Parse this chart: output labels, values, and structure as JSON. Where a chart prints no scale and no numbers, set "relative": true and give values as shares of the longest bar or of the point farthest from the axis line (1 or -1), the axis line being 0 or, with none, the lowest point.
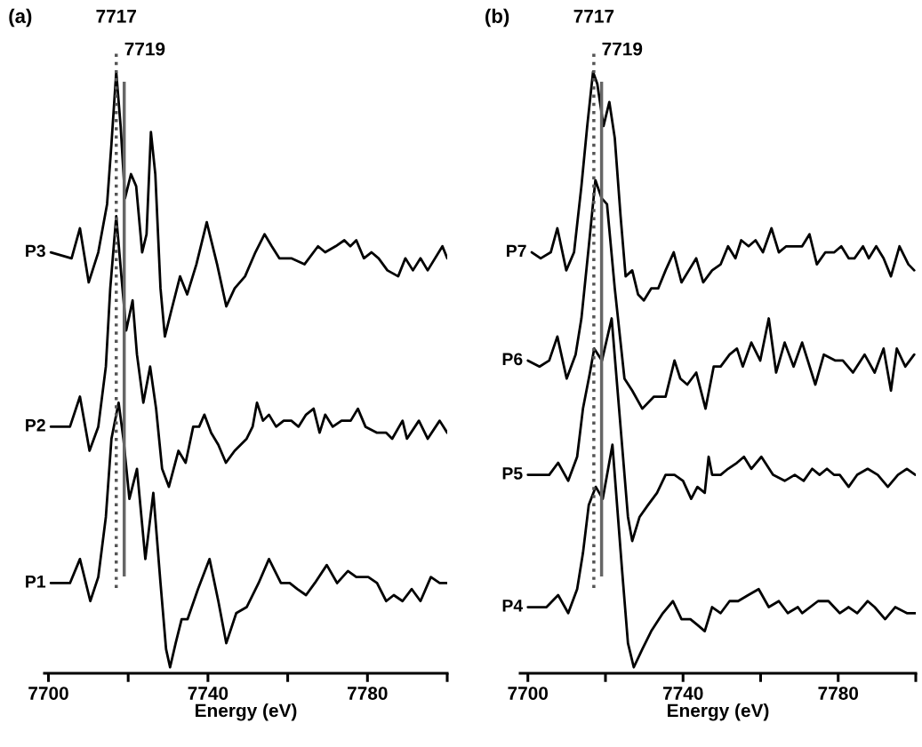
{
  "chart_data": [
    {
      "type": "line",
      "title": "(a)",
      "xlabel": "Energy (eV)",
      "relative": true,
      "tick_labels": "x",
      "legend": false,
      "grid": false,
      "marker": "none",
      "line_style": "solid",
      "xlim": [
        7699,
        7800
      ],
      "xticks": [
        7700,
        {
          "value": 7720,
          "label": null
        },
        7740,
        {
          "value": 7760,
          "label": null
        },
        7780,
        {
          "value": 7800,
          "label": null
        }
      ],
      "ref_lines": [
        {
          "axis": "x",
          "value": 7717,
          "label": "7717",
          "color": "#555555",
          "line_style": "dotted"
        },
        {
          "axis": "x",
          "value": 7719,
          "label": "7719",
          "color": "#666666",
          "line_style": "solid"
        }
      ],
      "series": [
        {
          "name": "P1",
          "color": "#000000",
          "x": [
            7700.6,
            7705.4,
            7707.9,
            7710.5,
            7712.5,
            7714.4,
            7715.8,
            7717.6,
            7718.8,
            7720.3,
            7722.2,
            7724.3,
            7726.3,
            7728.1,
            7729.5,
            7730.5,
            7731.9,
            7733.4,
            7734.9,
            7737.5,
            7740.4,
            7742.6,
            7744.6,
            7747.1,
            7749.7,
            7752.7,
            7755.3,
            7758.3,
            7760.5,
            7762.4,
            7764.6,
            7766.8,
            7769.8,
            7772.4,
            7775.1,
            7777.2,
            7780.2,
            7782.4,
            7784.7,
            7786.6,
            7788.8,
            7791.1,
            7793.3,
            7795.9,
            7798.1,
            7800
          ],
          "values": [
            0.15,
            0.15,
            0.19,
            0.12,
            0.16,
            0.26,
            0.39,
            0.45,
            0.39,
            0.29,
            0.34,
            0.19,
            0.3,
            0.15,
            0.04,
            0.01,
            0.05,
            0.09,
            0.09,
            0.14,
            0.19,
            0.12,
            0.05,
            0.1,
            0.11,
            0.15,
            0.19,
            0.15,
            0.15,
            0.14,
            0.13,
            0.15,
            0.18,
            0.15,
            0.17,
            0.16,
            0.16,
            0.15,
            0.12,
            0.13,
            0.12,
            0.14,
            0.12,
            0.16,
            0.15,
            0.15
          ]
        },
        {
          "name": "P2",
          "color": "#000000",
          "x": [
            7700.6,
            7705.4,
            7707.9,
            7710.3,
            7712.5,
            7714.4,
            7715.5,
            7717.0,
            7718.3,
            7719.5,
            7721.1,
            7722.2,
            7723.8,
            7725.5,
            7727.0,
            7728.5,
            7730.2,
            7732.6,
            7734.4,
            7736.3,
            7737.8,
            7739.1,
            7740.8,
            7742.6,
            7744.5,
            7746.7,
            7749.7,
            7751.2,
            7752.3,
            7753.8,
            7755.3,
            7757.1,
            7759.0,
            7760.9,
            7762.7,
            7764.6,
            7766.5,
            7768.0,
            7769.4,
            7771.3,
            7773.5,
            7775.8,
            7777.6,
            7779.5,
            7782.4,
            7784.7,
            7786.2,
            7788.8,
            7789.9,
            7792.9,
            7795.1,
            7798.1,
            7800
          ],
          "values": [
            0.41,
            0.41,
            0.46,
            0.37,
            0.41,
            0.51,
            0.64,
            0.76,
            0.66,
            0.57,
            0.62,
            0.53,
            0.45,
            0.51,
            0.44,
            0.34,
            0.31,
            0.37,
            0.35,
            0.41,
            0.41,
            0.43,
            0.4,
            0.38,
            0.35,
            0.37,
            0.39,
            0.41,
            0.45,
            0.42,
            0.43,
            0.41,
            0.42,
            0.42,
            0.41,
            0.43,
            0.44,
            0.4,
            0.43,
            0.41,
            0.42,
            0.42,
            0.44,
            0.41,
            0.4,
            0.4,
            0.39,
            0.42,
            0.39,
            0.42,
            0.39,
            0.42,
            0.4
          ]
        },
        {
          "name": "P3",
          "color": "#000000",
          "x": [
            7700.6,
            7705.8,
            7707.9,
            7710.1,
            7712.5,
            7714.7,
            7715.8,
            7717.0,
            7718.1,
            7719.2,
            7720.7,
            7722.0,
            7723.5,
            7724.6,
            7725.7,
            7726.8,
            7728.1,
            7729.2,
            7730.7,
            7733.0,
            7734.8,
            7737.1,
            7739.7,
            7742.3,
            7744.6,
            7746.7,
            7749.3,
            7751.9,
            7754.2,
            7756.0,
            7757.9,
            7760.9,
            7764.2,
            7767.6,
            7769.4,
            7772.0,
            7774.2,
            7775.7,
            7777.2,
            7779.1,
            7781.0,
            7782.8,
            7785.0,
            7787.7,
            7789.5,
            7791.4,
            7793.3,
            7795.1,
            7798.8,
            7800
          ],
          "values": [
            0.7,
            0.69,
            0.74,
            0.65,
            0.7,
            0.78,
            0.88,
            1.0,
            0.91,
            0.79,
            0.83,
            0.81,
            0.7,
            0.73,
            0.9,
            0.83,
            0.64,
            0.56,
            0.6,
            0.66,
            0.63,
            0.68,
            0.75,
            0.68,
            0.61,
            0.64,
            0.66,
            0.7,
            0.73,
            0.71,
            0.69,
            0.69,
            0.68,
            0.71,
            0.7,
            0.71,
            0.72,
            0.71,
            0.72,
            0.69,
            0.7,
            0.69,
            0.67,
            0.66,
            0.69,
            0.67,
            0.69,
            0.67,
            0.71,
            0.69
          ]
        }
      ]
    },
    {
      "type": "line",
      "title": "(b)",
      "xlabel": "Energy (eV)",
      "relative": true,
      "tick_labels": "x",
      "legend": false,
      "grid": false,
      "marker": "none",
      "line_style": "solid",
      "xlim": [
        7698,
        7800
      ],
      "xticks": [
        7700,
        {
          "value": 7720,
          "label": null
        },
        7740,
        {
          "value": 7760,
          "label": null
        },
        7780,
        {
          "value": 7800,
          "label": null
        }
      ],
      "ref_lines": [
        {
          "axis": "x",
          "value": 7717,
          "label": "7717",
          "color": "#555555",
          "line_style": "dotted"
        },
        {
          "axis": "x",
          "value": 7719,
          "label": "7719",
          "color": "#666666",
          "line_style": "solid"
        }
      ],
      "series": [
        {
          "name": "P4",
          "color": "#000000",
          "x": [
            7700,
            7704.8,
            7707.8,
            7710.4,
            7712.7,
            7714.2,
            7715.7,
            7717.5,
            7719.3,
            7721.8,
            7724.3,
            7725.8,
            7727.3,
            7729.5,
            7731.8,
            7734.8,
            7737.4,
            7739.6,
            7741.9,
            7743.8,
            7745.6,
            7747.5,
            7749.7,
            7752.0,
            7754.2,
            7756.8,
            7759.5,
            7762.1,
            7764.7,
            7767.0,
            7769.6,
            7770.7,
            7774.8,
            7777.5,
            7780.4,
            7782.7,
            7784.9,
            7787.6,
            7789.4,
            7792.1,
            7794.7,
            7797.7,
            7799.9
          ],
          "values": [
            0.11,
            0.11,
            0.13,
            0.1,
            0.14,
            0.2,
            0.28,
            0.31,
            0.29,
            0.38,
            0.17,
            0.05,
            0.01,
            0.04,
            0.07,
            0.1,
            0.12,
            0.09,
            0.09,
            0.08,
            0.07,
            0.11,
            0.1,
            0.12,
            0.12,
            0.13,
            0.14,
            0.11,
            0.12,
            0.1,
            0.11,
            0.1,
            0.12,
            0.12,
            0.1,
            0.11,
            0.1,
            0.12,
            0.11,
            0.09,
            0.11,
            0.1,
            0.1
          ]
        },
        {
          "name": "P5",
          "color": "#000000",
          "x": [
            7700,
            7705.5,
            7707.8,
            7710.4,
            7712.7,
            7714.2,
            7716.0,
            7717.1,
            7719.1,
            7721.6,
            7725.8,
            7726.9,
            7728.8,
            7731.0,
            7733.3,
            7735.5,
            7737.8,
            7740.0,
            7742.1,
            7743.7,
            7745.6,
            7746.6,
            7747.5,
            7749.7,
            7751.6,
            7753.9,
            7755.7,
            7757.6,
            7760.2,
            7763.2,
            7766.2,
            7768.8,
            7771.1,
            7773.3,
            7775.2,
            7777.1,
            7778.9,
            7780.4,
            7782.7,
            7784.9,
            7787.6,
            7790.2,
            7792.8,
            7795.4,
            7797.7,
            7799.9
          ],
          "values": [
            0.33,
            0.33,
            0.35,
            0.32,
            0.36,
            0.44,
            0.5,
            0.54,
            0.52,
            0.59,
            0.26,
            0.22,
            0.26,
            0.28,
            0.3,
            0.33,
            0.33,
            0.32,
            0.29,
            0.31,
            0.3,
            0.36,
            0.33,
            0.33,
            0.34,
            0.35,
            0.36,
            0.34,
            0.36,
            0.33,
            0.32,
            0.33,
            0.32,
            0.34,
            0.33,
            0.34,
            0.33,
            0.33,
            0.31,
            0.33,
            0.34,
            0.33,
            0.31,
            0.33,
            0.34,
            0.33
          ]
        },
        {
          "name": "P6",
          "color": "#000000",
          "x": [
            7700,
            7703.0,
            7705.5,
            7707.6,
            7710.0,
            7712.3,
            7713.8,
            7715.7,
            7717.4,
            7719.0,
            7720.4,
            7722.4,
            7724.9,
            7726.9,
            7729.5,
            7732.5,
            7735.5,
            7737.8,
            7739.3,
            7741.1,
            7743.4,
            7745.8,
            7747.9,
            7749.7,
            7752.0,
            7753.9,
            7755.4,
            7757.6,
            7759.9,
            7762.1,
            7764.0,
            7766.2,
            7768.5,
            7770.7,
            7774.1,
            7776.3,
            7779.3,
            7781.2,
            7783.8,
            7786.8,
            7789.4,
            7791.7,
            7793.6,
            7795.1,
            7797.3,
            7799.6
          ],
          "values": [
            0.52,
            0.51,
            0.52,
            0.56,
            0.49,
            0.53,
            0.59,
            0.71,
            0.82,
            0.79,
            0.78,
            0.64,
            0.49,
            0.47,
            0.44,
            0.46,
            0.46,
            0.52,
            0.49,
            0.48,
            0.5,
            0.44,
            0.51,
            0.51,
            0.53,
            0.54,
            0.51,
            0.55,
            0.52,
            0.59,
            0.5,
            0.55,
            0.51,
            0.55,
            0.48,
            0.53,
            0.52,
            0.52,
            0.5,
            0.53,
            0.5,
            0.54,
            0.47,
            0.54,
            0.51,
            0.53
          ]
        },
        {
          "name": "P7",
          "color": "#000000",
          "x": [
            7701.0,
            7703.3,
            7705.9,
            7707.6,
            7709.9,
            7711.9,
            7713.8,
            7715.3,
            7716.8,
            7717.9,
            7719.5,
            7721.0,
            7722.4,
            7723.9,
            7725.2,
            7726.9,
            7728.4,
            7729.9,
            7731.8,
            7733.6,
            7735.5,
            7737.6,
            7739.6,
            7741.5,
            7743.4,
            7745.2,
            7747.5,
            7749.7,
            7751.6,
            7753.5,
            7755.0,
            7756.9,
            7758.7,
            7760.6,
            7762.8,
            7764.7,
            7766.6,
            7768.5,
            7770.7,
            7772.6,
            7774.5,
            7776.7,
            7779.0,
            7780.8,
            7782.7,
            7784.2,
            7786.4,
            7787.9,
            7789.8,
            7791.7,
            7793.6,
            7795.8,
            7798.1,
            7799.6
          ],
          "values": [
            0.7,
            0.69,
            0.7,
            0.74,
            0.67,
            0.7,
            0.81,
            0.91,
            1.0,
            0.98,
            0.91,
            0.95,
            0.89,
            0.76,
            0.66,
            0.67,
            0.63,
            0.62,
            0.64,
            0.64,
            0.67,
            0.7,
            0.65,
            0.67,
            0.69,
            0.65,
            0.67,
            0.68,
            0.71,
            0.69,
            0.72,
            0.71,
            0.72,
            0.7,
            0.74,
            0.7,
            0.71,
            0.71,
            0.71,
            0.73,
            0.68,
            0.7,
            0.7,
            0.71,
            0.69,
            0.69,
            0.71,
            0.69,
            0.71,
            0.69,
            0.66,
            0.71,
            0.68,
            0.67
          ]
        }
      ]
    }
  ]
}
